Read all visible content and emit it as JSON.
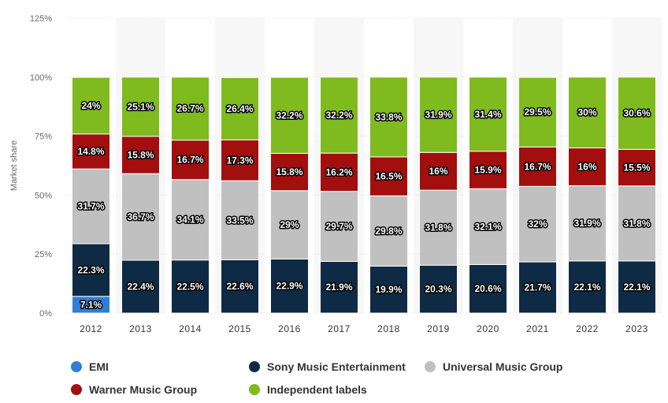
{
  "chart_data": {
    "type": "bar",
    "stacked": true,
    "categories": [
      "2012",
      "2013",
      "2014",
      "2015",
      "2016",
      "2017",
      "2018",
      "2019",
      "2020",
      "2021",
      "2022",
      "2023"
    ],
    "series": [
      {
        "name": "EMI",
        "color": "#2f7ed8",
        "values": [
          7.1,
          null,
          null,
          null,
          null,
          null,
          null,
          null,
          null,
          null,
          null,
          null
        ],
        "labels": [
          "7.1%",
          "",
          "",
          "",
          "",
          "",
          "",
          "",
          "",
          "",
          "",
          ""
        ]
      },
      {
        "name": "Sony Music Entertainment",
        "color": "#0f2a45",
        "values": [
          22.3,
          22.4,
          22.5,
          22.6,
          22.9,
          21.9,
          19.9,
          20.3,
          20.6,
          21.7,
          22.1,
          22.1
        ],
        "labels": [
          "22.3%",
          "22.4%",
          "22.5%",
          "22.6%",
          "22.9%",
          "21.9%",
          "19.9%",
          "20.3%",
          "20.6%",
          "21.7%",
          "22.1%",
          "22.1%"
        ]
      },
      {
        "name": "Universal Music Group",
        "color": "#c0c0c0",
        "values": [
          31.7,
          36.7,
          34.1,
          33.5,
          29,
          29.7,
          29.8,
          31.8,
          32.1,
          32,
          31.9,
          31.8
        ],
        "labels": [
          "31.7%",
          "36.7%",
          "34.1%",
          "33.5%",
          "29%",
          "29.7%",
          "29.8%",
          "31.8%",
          "32.1%",
          "32%",
          "31.9%",
          "31.8%"
        ]
      },
      {
        "name": "Warner Music Group",
        "color": "#a30e0e",
        "values": [
          14.8,
          15.8,
          16.7,
          17.3,
          15.8,
          16.2,
          16.5,
          16,
          15.9,
          16.7,
          16,
          15.5
        ],
        "labels": [
          "14.8%",
          "15.8%",
          "16.7%",
          "17.3%",
          "15.8%",
          "16.2%",
          "16.5%",
          "16%",
          "15.9%",
          "16.7%",
          "16%",
          "15.5%"
        ]
      },
      {
        "name": "Independent labels",
        "color": "#7fba1e",
        "values": [
          24,
          25.1,
          26.7,
          26.4,
          32.2,
          32.2,
          33.8,
          31.9,
          31.4,
          29.5,
          30,
          30.6
        ],
        "labels": [
          "24%",
          "25.1%",
          "26.7%",
          "26.4%",
          "32.2%",
          "32.2%",
          "33.8%",
          "31.9%",
          "31.4%",
          "29.5%",
          "30%",
          "30.6%"
        ]
      }
    ],
    "ylabel": "Market share",
    "ylim": [
      0,
      125
    ],
    "yticks": [
      0,
      25,
      50,
      75,
      100,
      125
    ],
    "ytick_labels": [
      "0%",
      "25%",
      "50%",
      "75%",
      "100%",
      "125%"
    ],
    "grid": true,
    "legend_position": "bottom",
    "legend": {
      "row1": [
        "EMI",
        "Sony Music Entertainment",
        "Universal Music Group"
      ],
      "row2": [
        "Warner Music Group",
        "Independent labels"
      ]
    }
  }
}
